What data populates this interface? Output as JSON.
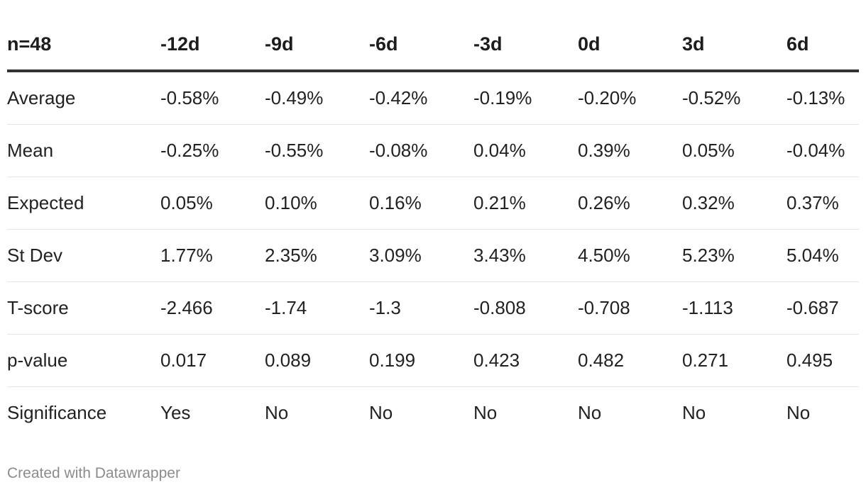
{
  "chart_data": {
    "type": "table",
    "columns": [
      "n=48",
      "-12d",
      "-9d",
      "-6d",
      "-3d",
      "0d",
      "3d",
      "6d"
    ],
    "rows": [
      {
        "label": "Average",
        "cells": [
          "-0.58%",
          "-0.49%",
          "-0.42%",
          "-0.19%",
          "-0.20%",
          "-0.52%",
          "-0.13%"
        ]
      },
      {
        "label": "Mean",
        "cells": [
          "-0.25%",
          "-0.55%",
          "-0.08%",
          "0.04%",
          "0.39%",
          "0.05%",
          "-0.04%"
        ]
      },
      {
        "label": "Expected",
        "cells": [
          "0.05%",
          "0.10%",
          "0.16%",
          "0.21%",
          "0.26%",
          "0.32%",
          "0.37%"
        ]
      },
      {
        "label": "St Dev",
        "cells": [
          "1.77%",
          "2.35%",
          "3.09%",
          "3.43%",
          "4.50%",
          "5.23%",
          "5.04%"
        ]
      },
      {
        "label": "T-score",
        "cells": [
          "-2.466",
          "-1.74",
          "-1.3",
          "-0.808",
          "-0.708",
          "-1.113",
          "-0.687"
        ]
      },
      {
        "label": "p-value",
        "cells": [
          "0.017",
          "0.089",
          "0.199",
          "0.423",
          "0.482",
          "0.271",
          "0.495"
        ]
      },
      {
        "label": "Significance",
        "cells": [
          "Yes",
          "No",
          "No",
          "No",
          "No",
          "No",
          "No"
        ]
      }
    ]
  },
  "footer": {
    "credit": "Created with Datawrapper"
  }
}
